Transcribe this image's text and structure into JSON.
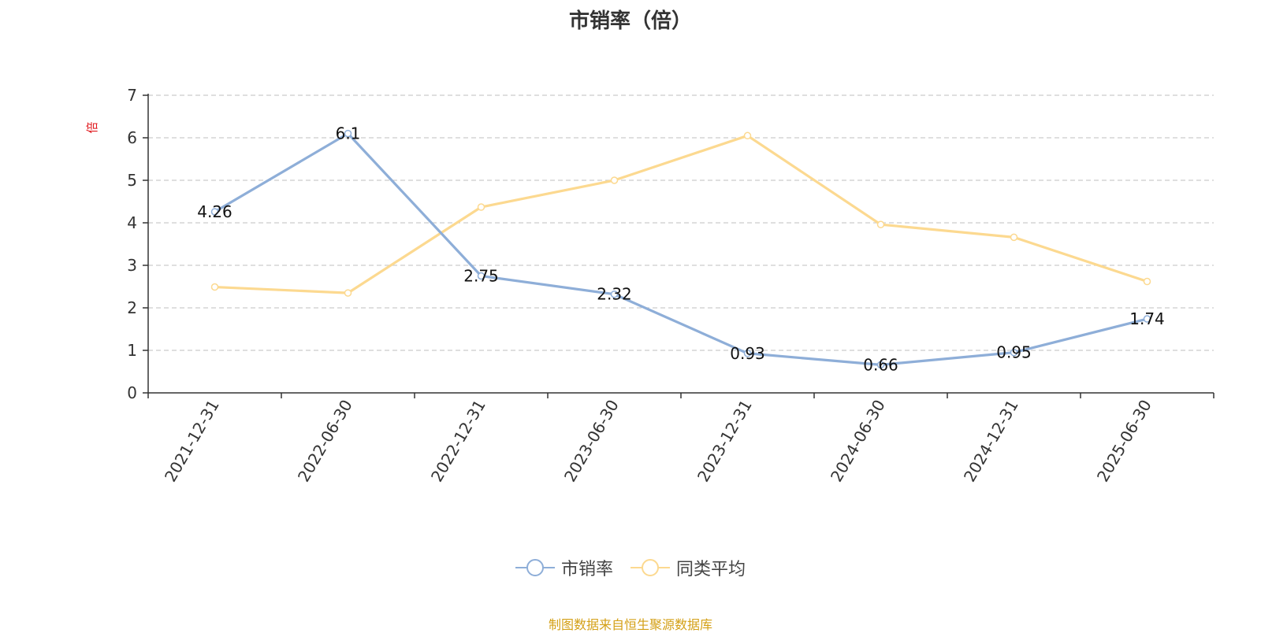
{
  "chart_data": {
    "type": "line",
    "title": "市销率（倍）",
    "ylabel": "倍",
    "categories": [
      "2021-12-31",
      "2022-06-30",
      "2022-12-31",
      "2023-06-30",
      "2023-12-31",
      "2024-06-30",
      "2024-12-31",
      "2025-06-30"
    ],
    "series": [
      {
        "name": "市销率",
        "color": "#8eaed8",
        "values": [
          4.26,
          6.1,
          2.75,
          2.32,
          0.93,
          0.66,
          0.95,
          1.74
        ],
        "labels": [
          "4.26",
          "6.1",
          "2.75",
          "2.32",
          "0.93",
          "0.66",
          "0.95",
          "1.74"
        ],
        "show_labels": true
      },
      {
        "name": "同类平均",
        "color": "#fcd990",
        "values": [
          2.49,
          2.35,
          4.37,
          5.0,
          6.05,
          3.96,
          3.66,
          2.62
        ],
        "show_labels": false
      }
    ],
    "ylim": [
      0,
      7
    ],
    "yticks": [
      "0",
      "1",
      "2",
      "3",
      "4",
      "5",
      "6",
      "7"
    ],
    "grid": true,
    "legend_position": "bottom-center"
  },
  "source_note": "制图数据来自恒生聚源数据库",
  "colors": {
    "unit_label": "#e0191e",
    "source_note": "#d4a017"
  }
}
